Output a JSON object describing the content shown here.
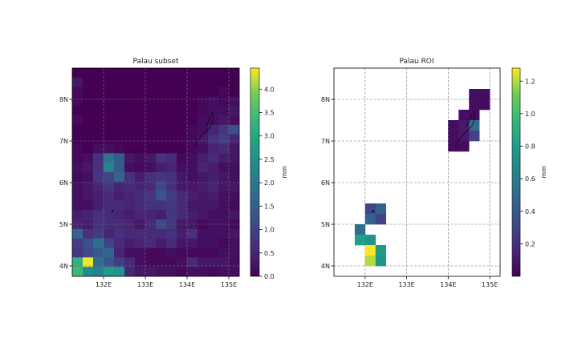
{
  "colors": {
    "grid": "#777777",
    "frame": "#000000",
    "colormap": "viridis",
    "background": "#ffffff"
  },
  "chart_data": [
    {
      "type": "heatmap",
      "title": "Palau subset",
      "xlim": [
        131.25,
        135.25
      ],
      "ylim": [
        3.75,
        8.75
      ],
      "xticks": [
        {
          "value": 132,
          "label": "132E"
        },
        {
          "value": 133,
          "label": "133E"
        },
        {
          "value": 134,
          "label": "134E"
        },
        {
          "value": 135,
          "label": "135E"
        }
      ],
      "yticks": [
        {
          "value": 4,
          "label": "4N"
        },
        {
          "value": 5,
          "label": "5N"
        },
        {
          "value": 6,
          "label": "6N"
        },
        {
          "value": 7,
          "label": "7N"
        },
        {
          "value": 8,
          "label": "8N"
        }
      ],
      "grid": true,
      "cell_size_deg": 0.25,
      "colorbar": {
        "label": "mm",
        "min": 0.0,
        "max": 4.45,
        "ticks": [
          {
            "value": 0.0,
            "label": "0.0"
          },
          {
            "value": 0.5,
            "label": "0.5"
          },
          {
            "value": 1.0,
            "label": "1.0"
          },
          {
            "value": 1.5,
            "label": "1.5"
          },
          {
            "value": 2.0,
            "label": "2.0"
          },
          {
            "value": 2.5,
            "label": "2.5"
          },
          {
            "value": 3.0,
            "label": "3.0"
          },
          {
            "value": 3.5,
            "label": "3.5"
          },
          {
            "value": 4.0,
            "label": "4.0"
          }
        ]
      },
      "grid_rows_top_to_bottom": [
        [
          0.0,
          0.0,
          0.0,
          0.0,
          0.0,
          0.0,
          0.0,
          0.0,
          0.0,
          0.0,
          0.0,
          0.0,
          0.0,
          0.0,
          0.0,
          0.0
        ],
        [
          0.3,
          0.0,
          0.0,
          0.0,
          0.0,
          0.0,
          0.0,
          0.0,
          0.0,
          0.0,
          0.0,
          0.0,
          0.0,
          0.0,
          0.0,
          0.0
        ],
        [
          0.1,
          0.0,
          0.0,
          0.0,
          0.0,
          0.0,
          0.0,
          0.0,
          0.0,
          0.0,
          0.0,
          0.0,
          0.0,
          0.0,
          0.1,
          0.0
        ],
        [
          0.1,
          0.0,
          0.0,
          0.0,
          0.0,
          0.0,
          0.0,
          0.0,
          0.0,
          0.0,
          0.0,
          0.0,
          0.1,
          0.2,
          0.1,
          0.2
        ],
        [
          0.0,
          0.0,
          0.0,
          0.0,
          0.0,
          0.0,
          0.0,
          0.0,
          0.0,
          0.0,
          0.0,
          0.0,
          0.1,
          0.2,
          0.2,
          0.3
        ],
        [
          0.1,
          0.0,
          0.0,
          0.0,
          0.0,
          0.0,
          0.0,
          0.0,
          0.0,
          0.0,
          0.0,
          0.0,
          0.2,
          0.2,
          0.3,
          0.2
        ],
        [
          0.0,
          0.0,
          0.0,
          0.0,
          0.0,
          0.0,
          0.0,
          0.0,
          0.0,
          0.0,
          0.0,
          0.1,
          0.2,
          0.5,
          0.8,
          1.2
        ],
        [
          0.0,
          0.0,
          0.0,
          0.0,
          0.0,
          0.0,
          0.0,
          0.0,
          0.0,
          0.0,
          0.0,
          0.1,
          0.3,
          0.7,
          0.9,
          0.5
        ],
        [
          0.1,
          0.0,
          0.2,
          0.2,
          0.1,
          0.0,
          0.0,
          0.0,
          0.0,
          0.0,
          0.0,
          0.1,
          0.2,
          0.5,
          0.6,
          0.3
        ],
        [
          0.1,
          0.2,
          0.7,
          1.9,
          1.4,
          0.3,
          0.2,
          0.3,
          0.7,
          0.6,
          0.1,
          0.2,
          0.4,
          0.6,
          0.4,
          0.3
        ],
        [
          0.2,
          0.3,
          0.7,
          2.2,
          1.4,
          0.2,
          0.1,
          0.2,
          0.4,
          0.5,
          0.2,
          0.2,
          0.5,
          0.4,
          0.2,
          0.2
        ],
        [
          0.1,
          0.2,
          0.8,
          1.0,
          1.6,
          0.7,
          0.4,
          0.7,
          0.8,
          0.7,
          0.3,
          0.2,
          0.3,
          0.4,
          0.3,
          0.2
        ],
        [
          0.2,
          0.3,
          0.5,
          0.8,
          0.5,
          0.6,
          0.5,
          0.6,
          1.1,
          0.7,
          0.3,
          0.3,
          0.4,
          0.5,
          0.3,
          0.3
        ],
        [
          0.2,
          0.3,
          0.4,
          0.6,
          0.4,
          0.5,
          0.6,
          0.8,
          1.3,
          0.9,
          0.6,
          0.4,
          0.3,
          0.4,
          0.2,
          0.2
        ],
        [
          0.2,
          0.2,
          0.4,
          0.6,
          0.6,
          0.5,
          0.6,
          0.7,
          0.7,
          0.8,
          0.6,
          0.3,
          0.3,
          0.3,
          0.2,
          0.1
        ],
        [
          0.4,
          0.5,
          0.7,
          0.6,
          0.5,
          0.4,
          0.5,
          0.5,
          0.4,
          0.8,
          0.6,
          0.4,
          0.3,
          0.2,
          0.2,
          0.3
        ],
        [
          0.5,
          0.4,
          0.7,
          0.6,
          0.6,
          0.5,
          0.3,
          0.6,
          1.1,
          0.8,
          0.3,
          0.3,
          0.1,
          0.2,
          0.2,
          0.1
        ],
        [
          1.6,
          0.7,
          0.9,
          0.5,
          0.7,
          0.6,
          0.6,
          0.6,
          0.6,
          0.7,
          0.4,
          0.7,
          0.2,
          0.2,
          0.2,
          0.3
        ],
        [
          0.9,
          1.2,
          1.8,
          1.0,
          0.6,
          0.4,
          0.5,
          0.6,
          0.4,
          0.6,
          0.3,
          0.3,
          0.2,
          0.2,
          0.1,
          0.2
        ],
        [
          0.8,
          1.1,
          1.4,
          1.6,
          0.5,
          0.2,
          0.2,
          0.1,
          0.1,
          0.2,
          0.1,
          0.1,
          0.1,
          0.1,
          0.2,
          0.2
        ],
        [
          3.2,
          4.4,
          1.8,
          1.3,
          0.9,
          0.6,
          0.2,
          0.1,
          0.1,
          0.1,
          0.2,
          0.6,
          0.3,
          0.3,
          0.3,
          0.2
        ],
        [
          3.4,
          2.4,
          2.2,
          2.7,
          2.6,
          0.5,
          0.3,
          0.3,
          0.2,
          0.2,
          0.1,
          0.2,
          0.2,
          0.1,
          0.2,
          0.2
        ]
      ]
    },
    {
      "type": "heatmap",
      "title": "Palau ROI",
      "xlim": [
        131.25,
        135.25
      ],
      "ylim": [
        3.75,
        8.75
      ],
      "xticks": [
        {
          "value": 132,
          "label": "132E"
        },
        {
          "value": 133,
          "label": "133E"
        },
        {
          "value": 134,
          "label": "134E"
        },
        {
          "value": 135,
          "label": "135E"
        }
      ],
      "yticks": [
        {
          "value": 4,
          "label": "4N"
        },
        {
          "value": 5,
          "label": "5N"
        },
        {
          "value": 6,
          "label": "6N"
        },
        {
          "value": 7,
          "label": "7N"
        },
        {
          "value": 8,
          "label": "8N"
        }
      ],
      "grid": true,
      "cell_size_deg": 0.25,
      "colorbar": {
        "label": "mm",
        "min": 0.0,
        "max": 1.28,
        "ticks": [
          {
            "value": 0.2,
            "label": "0.2"
          },
          {
            "value": 0.4,
            "label": "0.4"
          },
          {
            "value": 0.6,
            "label": "0.6"
          },
          {
            "value": 0.8,
            "label": "0.8"
          },
          {
            "value": 1.0,
            "label": "1.0"
          },
          {
            "value": 1.2,
            "label": "1.2"
          }
        ]
      },
      "cells": [
        {
          "lon": 134.625,
          "lat": 8.125,
          "value": 0.05
        },
        {
          "lon": 134.875,
          "lat": 8.125,
          "value": 0.05
        },
        {
          "lon": 134.625,
          "lat": 7.875,
          "value": 0.05
        },
        {
          "lon": 134.875,
          "lat": 7.875,
          "value": 0.05
        },
        {
          "lon": 134.375,
          "lat": 7.625,
          "value": 0.05
        },
        {
          "lon": 134.625,
          "lat": 7.625,
          "value": 0.05
        },
        {
          "lon": 134.125,
          "lat": 7.375,
          "value": 0.05
        },
        {
          "lon": 134.375,
          "lat": 7.375,
          "value": 0.1
        },
        {
          "lon": 134.625,
          "lat": 7.375,
          "value": 0.5
        },
        {
          "lon": 134.125,
          "lat": 7.125,
          "value": 0.05
        },
        {
          "lon": 134.375,
          "lat": 7.125,
          "value": 0.1
        },
        {
          "lon": 134.625,
          "lat": 7.125,
          "value": 0.28
        },
        {
          "lon": 134.125,
          "lat": 6.875,
          "value": 0.05
        },
        {
          "lon": 134.375,
          "lat": 6.875,
          "value": 0.05
        },
        {
          "lon": 132.125,
          "lat": 5.375,
          "value": 0.3
        },
        {
          "lon": 132.375,
          "lat": 5.375,
          "value": 0.45
        },
        {
          "lon": 132.125,
          "lat": 5.125,
          "value": 0.45
        },
        {
          "lon": 132.375,
          "lat": 5.125,
          "value": 0.3
        },
        {
          "lon": 131.875,
          "lat": 4.875,
          "value": 0.52
        },
        {
          "lon": 131.875,
          "lat": 4.625,
          "value": 0.82
        },
        {
          "lon": 132.125,
          "lat": 4.625,
          "value": 0.75
        },
        {
          "lon": 132.125,
          "lat": 4.375,
          "value": 1.28
        },
        {
          "lon": 132.375,
          "lat": 4.375,
          "value": 0.78
        },
        {
          "lon": 132.125,
          "lat": 4.125,
          "value": 1.2
        },
        {
          "lon": 132.375,
          "lat": 4.125,
          "value": 0.75
        }
      ]
    }
  ]
}
